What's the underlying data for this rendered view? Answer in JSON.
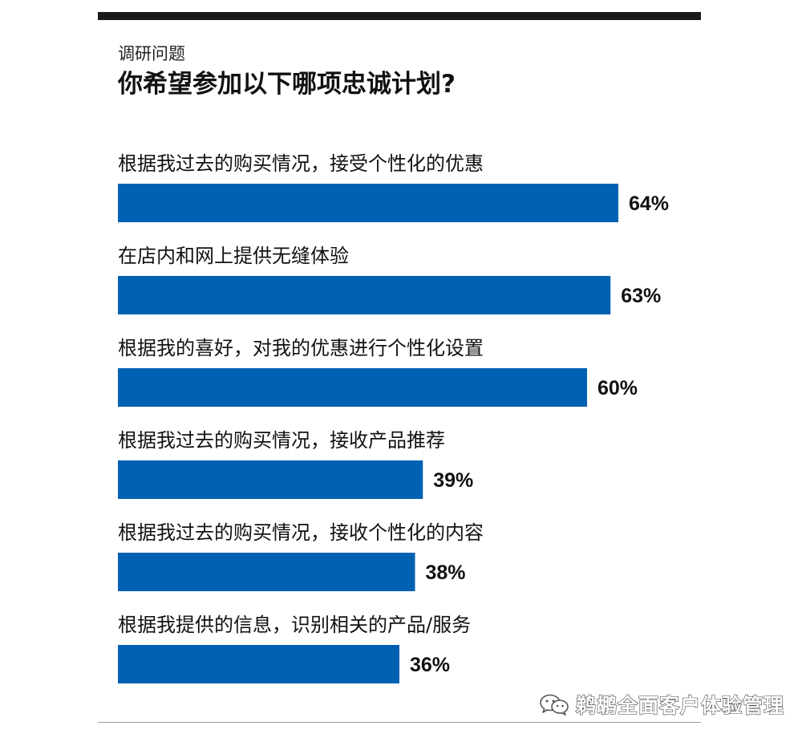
{
  "header": {
    "eyebrow": "调研问题",
    "title": "你希望参加以下哪项忠诚计划?"
  },
  "chart_data": {
    "type": "bar",
    "orientation": "horizontal",
    "categories": [
      "根据我过去的购买情况，接受个性化的优惠",
      "在店内和网上提供无缝体验",
      "根据我的喜好，对我的优惠进行个性化设置",
      "根据我过去的购买情况，接收产品推荐",
      "根据我过去的购买情况，接收个性化的内容",
      "根据我提供的信息，识别相关的产品/服务"
    ],
    "values": [
      64,
      63,
      60,
      39,
      38,
      36
    ],
    "value_labels": [
      "64%",
      "63%",
      "60%",
      "39%",
      "38%",
      "36%"
    ],
    "unit": "%",
    "xlim": [
      0,
      100
    ],
    "grid": false,
    "legend": "none",
    "bar_color": "#0061b3"
  },
  "watermark": {
    "icon": "wechat-icon",
    "text": "鹈鹕全面客户体验管理"
  }
}
